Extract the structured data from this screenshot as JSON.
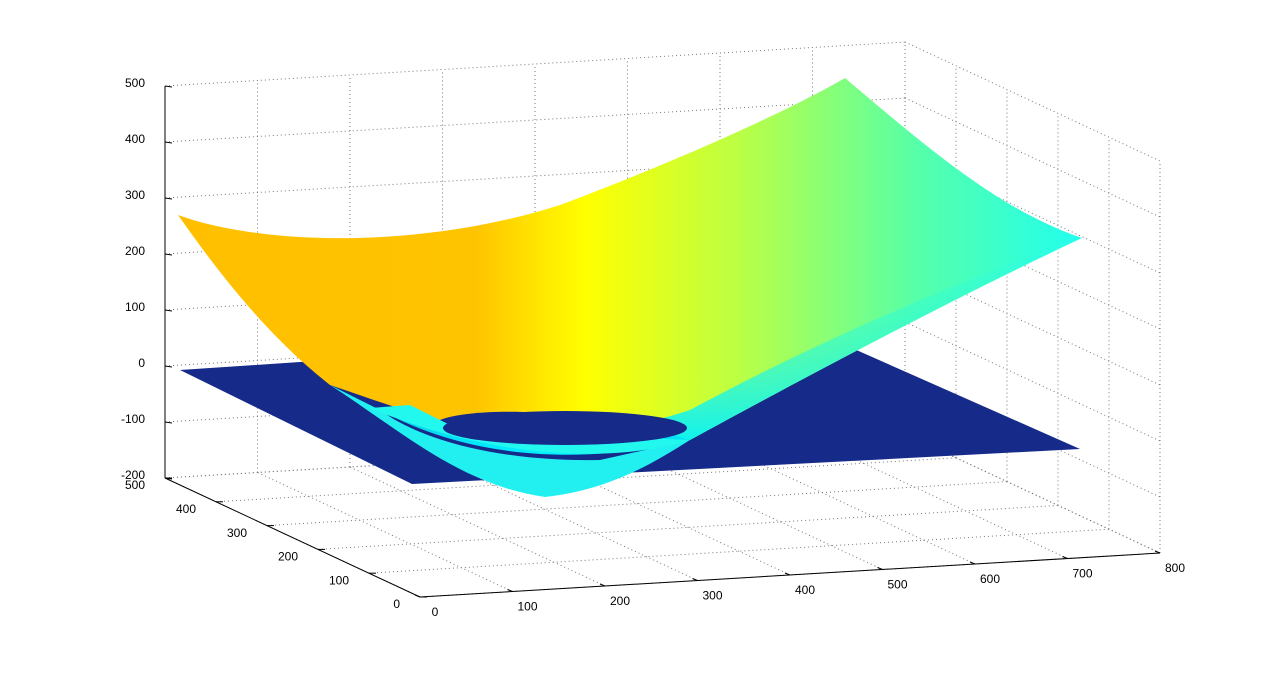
{
  "chart_data": {
    "type": "surface",
    "xlim": [
      0,
      800
    ],
    "xticks": [
      0,
      100,
      200,
      300,
      400,
      500,
      600,
      700,
      800
    ],
    "ylim": [
      0,
      500
    ],
    "yticks": [
      0,
      100,
      200,
      300,
      400,
      500
    ],
    "zlim": [
      -200,
      500
    ],
    "zticks": [
      -200,
      -100,
      0,
      100,
      200,
      300,
      400,
      500
    ],
    "grid": true
  }
}
